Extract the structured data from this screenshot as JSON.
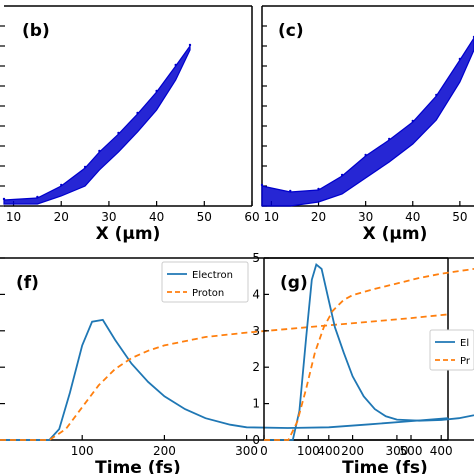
{
  "chart_data": [
    {
      "id": "b",
      "type": "scatter",
      "panel_label": "(b)",
      "xlabel": "X (μm)",
      "xlim": [
        8,
        60
      ],
      "ylim": [
        0,
        1.0
      ],
      "x_ticks": [
        10,
        20,
        30,
        40,
        50,
        60
      ],
      "x_tick_labels": [
        "10",
        "20",
        "30",
        "40",
        "50",
        "60"
      ],
      "y_ticks": [
        0.0,
        0.1,
        0.2,
        0.3,
        0.4,
        0.5,
        0.6,
        0.7,
        0.8,
        0.9
      ],
      "color": "#0000cc",
      "band_upper": [
        [
          8,
          0.03
        ],
        [
          15,
          0.04
        ],
        [
          20,
          0.1
        ],
        [
          25,
          0.19
        ],
        [
          28,
          0.27
        ],
        [
          32,
          0.36
        ],
        [
          36,
          0.46
        ],
        [
          40,
          0.57
        ],
        [
          44,
          0.7
        ],
        [
          47,
          0.8
        ]
      ],
      "band_lower": [
        [
          47,
          0.78
        ],
        [
          44,
          0.63
        ],
        [
          40,
          0.48
        ],
        [
          36,
          0.37
        ],
        [
          32,
          0.27
        ],
        [
          28,
          0.18
        ],
        [
          25,
          0.1
        ],
        [
          20,
          0.05
        ],
        [
          15,
          0.01
        ],
        [
          8,
          0.01
        ]
      ]
    },
    {
      "id": "c",
      "type": "scatter",
      "panel_label": "(c)",
      "xlabel": "X (μm)",
      "xlim": [
        8,
        53
      ],
      "ylim": [
        0,
        1.0
      ],
      "x_ticks": [
        10,
        20,
        30,
        40,
        50
      ],
      "x_tick_labels": [
        "10",
        "20",
        "30",
        "40",
        "50"
      ],
      "y_ticks": [
        0.0,
        0.1,
        0.2,
        0.3,
        0.4,
        0.5,
        0.6,
        0.7,
        0.8,
        0.9
      ],
      "color": "#0000cc",
      "band_upper": [
        [
          8,
          0.1
        ],
        [
          14,
          0.07
        ],
        [
          20,
          0.08
        ],
        [
          25,
          0.15
        ],
        [
          30,
          0.25
        ],
        [
          35,
          0.33
        ],
        [
          40,
          0.42
        ],
        [
          45,
          0.55
        ],
        [
          50,
          0.73
        ],
        [
          53,
          0.84
        ]
      ],
      "band_lower": [
        [
          53,
          0.78
        ],
        [
          50,
          0.62
        ],
        [
          45,
          0.43
        ],
        [
          40,
          0.31
        ],
        [
          35,
          0.22
        ],
        [
          30,
          0.14
        ],
        [
          25,
          0.06
        ],
        [
          20,
          0.02
        ],
        [
          14,
          0.0
        ],
        [
          8,
          0.0
        ]
      ]
    },
    {
      "id": "f",
      "type": "line",
      "panel_label": "(f)",
      "xlabel": "Time (fs)",
      "xlim": [
        0,
        545
      ],
      "ylim": [
        0,
        5
      ],
      "x_ticks": [
        100,
        200,
        300,
        400,
        500
      ],
      "x_tick_labels": [
        "100",
        "200",
        "300",
        "400",
        "500"
      ],
      "y_ticks": [
        0,
        1,
        2,
        3,
        4,
        5
      ],
      "legend": [
        "Electron",
        "Proton"
      ],
      "legend_position": "top-right",
      "series": [
        {
          "name": "Electron",
          "color": "#1f77b4",
          "style": "solid",
          "points": [
            [
              0,
              0
            ],
            [
              60,
              0
            ],
            [
              72,
              0.3
            ],
            [
              85,
              1.3
            ],
            [
              100,
              2.6
            ],
            [
              112,
              3.25
            ],
            [
              125,
              3.3
            ],
            [
              140,
              2.75
            ],
            [
              160,
              2.1
            ],
            [
              180,
              1.6
            ],
            [
              200,
              1.2
            ],
            [
              225,
              0.85
            ],
            [
              250,
              0.6
            ],
            [
              280,
              0.42
            ],
            [
              300,
              0.35
            ],
            [
              350,
              0.33
            ],
            [
              400,
              0.35
            ],
            [
              450,
              0.43
            ],
            [
              500,
              0.52
            ],
            [
              545,
              0.6
            ]
          ]
        },
        {
          "name": "Proton",
          "color": "#ff7f0e",
          "style": "dashed",
          "points": [
            [
              0,
              0
            ],
            [
              60,
              0
            ],
            [
              80,
              0.3
            ],
            [
              100,
              0.9
            ],
            [
              120,
              1.5
            ],
            [
              140,
              1.95
            ],
            [
              160,
              2.25
            ],
            [
              180,
              2.45
            ],
            [
              200,
              2.6
            ],
            [
              250,
              2.83
            ],
            [
              300,
              2.95
            ],
            [
              350,
              3.05
            ],
            [
              400,
              3.15
            ],
            [
              450,
              3.25
            ],
            [
              500,
              3.35
            ],
            [
              545,
              3.45
            ]
          ]
        }
      ]
    },
    {
      "id": "g",
      "type": "line",
      "panel_label": "(g)",
      "xlabel": "Time (fs)",
      "xlim": [
        0,
        474
      ],
      "ylim": [
        0,
        5
      ],
      "x_ticks": [
        0,
        100,
        200,
        300,
        400
      ],
      "x_tick_labels": [
        "0",
        "100",
        "200",
        "300",
        "400"
      ],
      "y_ticks": [
        0,
        1,
        2,
        3,
        4,
        5
      ],
      "y_tick_labels": [
        "0",
        "1",
        "2",
        "3",
        "4",
        "5"
      ],
      "legend": [
        "El",
        "Pr"
      ],
      "legend_position": "right",
      "series": [
        {
          "name": "El",
          "color": "#1f77b4",
          "style": "solid",
          "points": [
            [
              0,
              0
            ],
            [
              65,
              0
            ],
            [
              80,
              0.8
            ],
            [
              95,
              2.8
            ],
            [
              108,
              4.4
            ],
            [
              118,
              4.82
            ],
            [
              130,
              4.7
            ],
            [
              145,
              3.9
            ],
            [
              160,
              3.1
            ],
            [
              180,
              2.4
            ],
            [
              200,
              1.75
            ],
            [
              225,
              1.2
            ],
            [
              250,
              0.85
            ],
            [
              275,
              0.65
            ],
            [
              300,
              0.56
            ],
            [
              350,
              0.53
            ],
            [
              400,
              0.55
            ],
            [
              440,
              0.6
            ],
            [
              474,
              0.68
            ]
          ]
        },
        {
          "name": "Pr",
          "color": "#ff7f0e",
          "style": "dashed",
          "points": [
            [
              0,
              0
            ],
            [
              55,
              0
            ],
            [
              75,
              0.5
            ],
            [
              95,
              1.4
            ],
            [
              115,
              2.4
            ],
            [
              135,
              3.1
            ],
            [
              155,
              3.55
            ],
            [
              180,
              3.85
            ],
            [
              200,
              3.98
            ],
            [
              250,
              4.15
            ],
            [
              300,
              4.3
            ],
            [
              350,
              4.45
            ],
            [
              400,
              4.57
            ],
            [
              474,
              4.7
            ]
          ]
        }
      ]
    }
  ]
}
